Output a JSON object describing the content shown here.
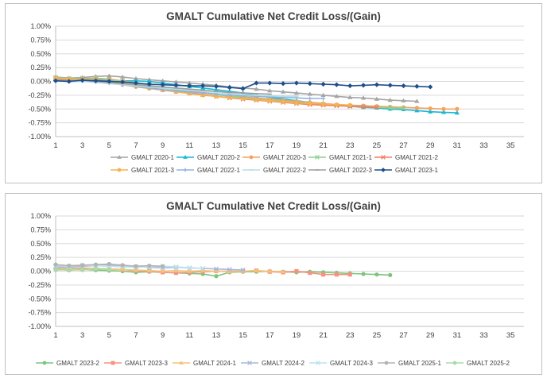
{
  "chart_data": [
    {
      "type": "line",
      "title": "GMALT Cumulative Net Credit Loss/(Gain)",
      "ylim": [
        -0.01,
        0.01
      ],
      "y_ticks": [
        "1.00%",
        "0.75%",
        "0.50%",
        "0.25%",
        "0.00%",
        "-0.25%",
        "-0.50%",
        "-0.75%",
        "-1.00%"
      ],
      "x_ticks": [
        "1",
        "3",
        "5",
        "7",
        "9",
        "11",
        "13",
        "15",
        "17",
        "19",
        "21",
        "23",
        "25",
        "27",
        "29",
        "31",
        "33",
        "35"
      ],
      "xlim": [
        1,
        36
      ],
      "series": [
        {
          "name": "GMALT 2020-1",
          "color": "#a5a5a5",
          "marker": "triangle",
          "values": [
            0.0008,
            0.0006,
            0.0007,
            0.0009,
            0.001,
            0.0008,
            0.0005,
            0.0003,
            0.0001,
            -0.0001,
            -0.0003,
            -0.0005,
            -0.0007,
            -0.001,
            -0.0012,
            -0.0014,
            -0.0017,
            -0.0019,
            -0.0021,
            -0.0023,
            -0.0025,
            -0.0027,
            -0.0029,
            -0.003,
            -0.0032,
            -0.0034,
            -0.0035,
            -0.0036
          ]
        },
        {
          "name": "GMALT 2020-2",
          "color": "#17b8d4",
          "marker": "triangle",
          "values": [
            0.0003,
            0.0001,
            0.0002,
            0.0003,
            0.0002,
            0.0001,
            0.0001,
            0.0,
            -0.0003,
            -0.0006,
            -0.0009,
            -0.0012,
            -0.0015,
            -0.0018,
            -0.0021,
            -0.0025,
            -0.0029,
            -0.0032,
            -0.0035,
            -0.0038,
            -0.004,
            -0.0043,
            -0.0045,
            -0.0047,
            -0.0048,
            -0.005,
            -0.0051,
            -0.0053,
            -0.0055,
            -0.0056,
            -0.0057
          ]
        },
        {
          "name": "GMALT 2020-3",
          "color": "#f4a261",
          "marker": "circle",
          "values": [
            0.0006,
            0.0004,
            0.0005,
            0.0006,
            0.0004,
            0.0001,
            -0.0003,
            -0.0007,
            -0.0011,
            -0.0014,
            -0.0017,
            -0.002,
            -0.0023,
            -0.0026,
            -0.0028,
            -0.003,
            -0.0032,
            -0.0034,
            -0.0036,
            -0.0038,
            -0.004,
            -0.0042,
            -0.0043,
            -0.0044,
            -0.0045,
            -0.0046,
            -0.0047,
            -0.0048,
            -0.0049,
            -0.005,
            -0.005
          ]
        },
        {
          "name": "GMALT 2021-1",
          "color": "#8fd18f",
          "marker": "x",
          "values": [
            0.0007,
            0.0005,
            0.0006,
            0.0005,
            0.0003,
            0.0,
            -0.0004,
            -0.0008,
            -0.0012,
            -0.0015,
            -0.0018,
            -0.0021,
            -0.0024,
            -0.0027,
            -0.0029,
            -0.0032,
            -0.0034,
            -0.0036,
            -0.0038,
            -0.004,
            -0.0042,
            -0.0044,
            -0.0045,
            -0.0046,
            -0.0047,
            -0.0048,
            -0.0049
          ]
        },
        {
          "name": "GMALT 2021-2",
          "color": "#f08060",
          "marker": "x",
          "values": [
            0.0005,
            0.0003,
            0.0004,
            0.0002,
            0.0,
            -0.0003,
            -0.0007,
            -0.0011,
            -0.0015,
            -0.0018,
            -0.0021,
            -0.0024,
            -0.0027,
            -0.003,
            -0.0032,
            -0.0034,
            -0.0036,
            -0.0038,
            -0.004,
            -0.0042,
            -0.0043,
            -0.0044,
            -0.0045,
            -0.0046,
            -0.0047
          ]
        },
        {
          "name": "GMALT 2021-3",
          "color": "#f6b24e",
          "marker": "circle",
          "values": [
            0.0006,
            0.0004,
            0.0003,
            0.0001,
            -0.0002,
            -0.0006,
            -0.001,
            -0.0013,
            -0.0016,
            -0.0019,
            -0.0022,
            -0.0025,
            -0.0027,
            -0.0029,
            -0.0031,
            -0.0033,
            -0.0035,
            -0.0037,
            -0.0039,
            -0.004,
            -0.0041,
            -0.0042,
            -0.0043
          ]
        },
        {
          "name": "GMALT 2022-1",
          "color": "#8db3e2",
          "marker": "plus",
          "values": [
            0.0002,
            0.0,
            0.0001,
            -0.0001,
            -0.0003,
            -0.0006,
            -0.0009,
            -0.0012,
            -0.0015,
            -0.0017,
            -0.0019,
            -0.0021,
            -0.0023,
            -0.0025,
            -0.0026,
            -0.0027,
            -0.0028,
            -0.0029,
            -0.003,
            -0.0031,
            -0.0031
          ]
        },
        {
          "name": "GMALT 2022-2",
          "color": "#b7dde8",
          "marker": "dash",
          "values": [
            0.0001,
            -0.0001,
            0.0,
            -0.0002,
            -0.0004,
            -0.0006,
            -0.0008,
            -0.001,
            -0.0012,
            -0.0014,
            -0.0016,
            -0.0018,
            -0.002,
            -0.0022,
            -0.0024,
            -0.0025,
            -0.0026,
            -0.0027,
            -0.0027
          ]
        },
        {
          "name": "GMALT 2022-3",
          "color": "#9e9e9e",
          "marker": "dash",
          "values": [
            0.0003,
            0.0001,
            0.0002,
            0.0,
            -0.0002,
            -0.0004,
            -0.0006,
            -0.0008,
            -0.001,
            -0.0012,
            -0.0014,
            -0.0016,
            -0.0018,
            -0.002,
            -0.0021,
            -0.0022,
            -0.0023
          ]
        },
        {
          "name": "GMALT 2023-1",
          "color": "#1f4e8c",
          "marker": "diamond",
          "values": [
            0.0001,
            0.0,
            0.0002,
            0.0001,
            0.0,
            -0.0001,
            -0.0003,
            -0.0005,
            -0.0006,
            -0.0007,
            -0.0008,
            -0.0008,
            -0.0009,
            -0.0011,
            -0.0013,
            -0.0003,
            -0.0003,
            -0.0004,
            -0.0003,
            -0.0004,
            -0.0005,
            -0.0006,
            -0.0008,
            -0.0007,
            -0.0006,
            -0.0007,
            -0.0008,
            -0.0009,
            -0.001
          ]
        }
      ],
      "legend_position": "bottom"
    },
    {
      "type": "line",
      "title": "GMALT Cumulative Net Credit Loss/(Gain)",
      "ylim": [
        -0.01,
        0.01
      ],
      "y_ticks": [
        "1.00%",
        "0.75%",
        "0.50%",
        "0.25%",
        "0.00%",
        "-0.25%",
        "-0.50%",
        "-0.75%",
        "-1.00%"
      ],
      "x_ticks": [
        "1",
        "3",
        "5",
        "7",
        "9",
        "11",
        "13",
        "15",
        "17",
        "19",
        "21",
        "23",
        "25",
        "27",
        "29",
        "31",
        "33",
        "35"
      ],
      "xlim": [
        1,
        36
      ],
      "series": [
        {
          "name": "GMALT 2023-2",
          "color": "#7dc47d",
          "marker": "circle",
          "values": [
            0.0003,
            0.0002,
            0.0003,
            0.0002,
            0.0001,
            0.0,
            -0.0002,
            -0.0001,
            -0.0002,
            -0.0003,
            -0.0004,
            -0.0005,
            -0.0009,
            -0.0002,
            -0.0001,
            -0.0001,
            0.0,
            -0.0001,
            -0.0002,
            -0.0001,
            -0.0002,
            -0.0003,
            -0.0004,
            -0.0005,
            -0.0006,
            -0.0007
          ]
        },
        {
          "name": "GMALT 2023-3",
          "color": "#f4937e",
          "marker": "square",
          "values": [
            0.0004,
            0.0003,
            0.0004,
            0.0005,
            0.0004,
            0.0003,
            0.0001,
            0.0,
            -0.0002,
            -0.0003,
            -0.0002,
            -0.0001,
            0.0,
            0.0,
            0.0,
            0.0001,
            -0.0001,
            -0.0002,
            0.0,
            -0.0003,
            -0.0006,
            -0.0006,
            -0.0006
          ]
        },
        {
          "name": "GMALT 2024-1",
          "color": "#f4c27a",
          "marker": "triangle",
          "values": [
            0.0006,
            0.0005,
            0.0006,
            0.0005,
            0.0004,
            0.0003,
            0.0002,
            0.0001,
            0.0,
            0.0001,
            0.0,
            0.0001,
            0.0,
            -0.0001,
            0.0,
            0.0001,
            0.0,
            -0.0001
          ]
        },
        {
          "name": "GMALT 2024-2",
          "color": "#a9b7d9",
          "marker": "x",
          "values": [
            0.0008,
            0.0007,
            0.0009,
            0.001,
            0.0011,
            0.0009,
            0.0008,
            0.0007,
            0.0006,
            0.0007,
            0.0006,
            0.0005,
            0.0004,
            0.0003,
            0.0002
          ]
        },
        {
          "name": "GMALT 2024-3",
          "color": "#b9e3ef",
          "marker": "x",
          "values": [
            0.001,
            0.0009,
            0.0011,
            0.001,
            0.0009,
            0.0008,
            0.0007,
            0.0008,
            0.0009,
            0.0008,
            0.0006,
            0.0005
          ]
        },
        {
          "name": "GMALT 2025-1",
          "color": "#b3b3b3",
          "marker": "circle",
          "values": [
            0.0012,
            0.001,
            0.0011,
            0.0012,
            0.0013,
            0.0011,
            0.0009,
            0.001,
            0.0009
          ]
        },
        {
          "name": "GMALT 2025-2",
          "color": "#a8dba8",
          "marker": "circle",
          "values": [
            0.0002,
            0.0003,
            0.0002,
            0.0004,
            0.0003
          ]
        }
      ],
      "legend_position": "bottom"
    }
  ]
}
